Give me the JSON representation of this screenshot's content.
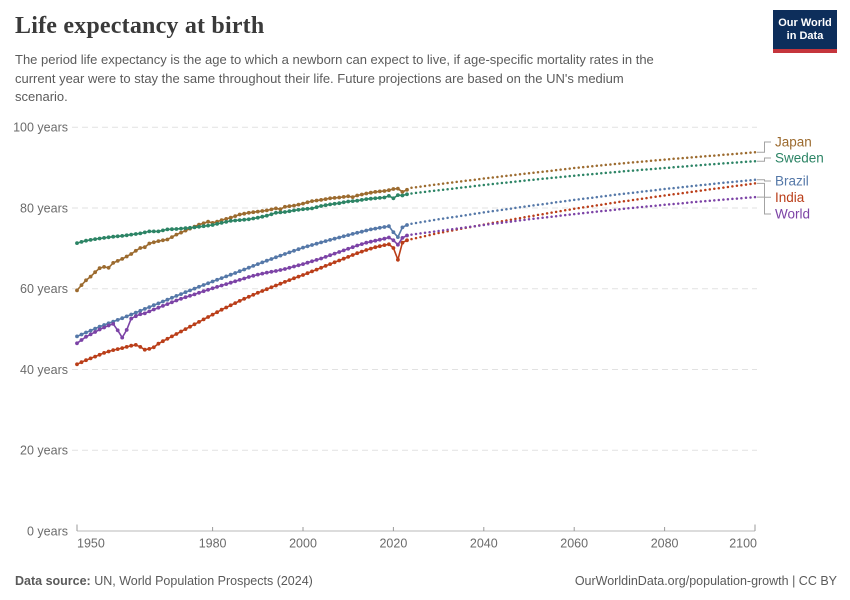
{
  "header": {
    "title": "Life expectancy at birth",
    "subtitle_lines": [
      "The period life expectancy is the age to which a newborn can expect to live, if age-specific mortality rates in the",
      "current year were to stay the same throughout their life. Future projections are based on the UN's medium",
      "scenario."
    ],
    "logo": {
      "line1": "Our World",
      "line2": "in Data"
    }
  },
  "footer": {
    "source_label": "Data source:",
    "source_text": " UN, World Population Prospects (2024)",
    "link_text": "OurWorldinData.org/population-growth",
    "license_text": " | CC BY"
  },
  "colors": {
    "logo_bg": "#0d2e5b",
    "logo_stripe": "#c5353c",
    "grid": "#e2e2e2",
    "axis_line": "#b8b8b8",
    "axis_tick": "#9a9a9a",
    "tick_text": "#6b6b6b",
    "connector": "#a3a3a3"
  },
  "chart_data": {
    "type": "line",
    "title": "Life expectancy at birth",
    "xlabel": "",
    "ylabel": "",
    "xlim": [
      1949,
      2100
    ],
    "ylim": [
      0,
      100
    ],
    "x_ticks": [
      1950,
      1980,
      2000,
      2020,
      2040,
      2060,
      2080,
      2100
    ],
    "y_ticks": [
      0,
      20,
      40,
      60,
      80,
      100
    ],
    "y_tick_suffix": " years",
    "grid": "horizontal-dashed",
    "legend_position": "right-of-lines",
    "projection_start": 2024,
    "projection_style": "dotted",
    "series": [
      {
        "name": "Japan",
        "color": "#9c6b2f",
        "historical": [
          [
            1950,
            59.6
          ],
          [
            1951,
            60.9
          ],
          [
            1952,
            62.1
          ],
          [
            1953,
            63.0
          ],
          [
            1954,
            64.1
          ],
          [
            1955,
            65.1
          ],
          [
            1956,
            65.4
          ],
          [
            1957,
            65.2
          ],
          [
            1958,
            66.4
          ],
          [
            1959,
            66.9
          ],
          [
            1960,
            67.4
          ],
          [
            1961,
            68.0
          ],
          [
            1962,
            68.6
          ],
          [
            1963,
            69.4
          ],
          [
            1964,
            70.1
          ],
          [
            1965,
            70.3
          ],
          [
            1966,
            71.2
          ],
          [
            1967,
            71.5
          ],
          [
            1968,
            71.8
          ],
          [
            1969,
            72.0
          ],
          [
            1970,
            72.2
          ],
          [
            1971,
            72.8
          ],
          [
            1972,
            73.4
          ],
          [
            1973,
            73.9
          ],
          [
            1974,
            74.4
          ],
          [
            1975,
            74.9
          ],
          [
            1976,
            75.4
          ],
          [
            1977,
            75.9
          ],
          [
            1978,
            76.2
          ],
          [
            1979,
            76.6
          ],
          [
            1980,
            76.3
          ],
          [
            1981,
            76.6
          ],
          [
            1982,
            77.0
          ],
          [
            1984,
            77.6
          ],
          [
            1986,
            78.4
          ],
          [
            1988,
            78.8
          ],
          [
            1990,
            79.1
          ],
          [
            1992,
            79.4
          ],
          [
            1994,
            79.9
          ],
          [
            1995,
            79.7
          ],
          [
            1996,
            80.3
          ],
          [
            1998,
            80.6
          ],
          [
            2000,
            81.1
          ],
          [
            2002,
            81.7
          ],
          [
            2004,
            82.0
          ],
          [
            2006,
            82.4
          ],
          [
            2008,
            82.6
          ],
          [
            2010,
            82.9
          ],
          [
            2011,
            82.7
          ],
          [
            2012,
            83.1
          ],
          [
            2014,
            83.6
          ],
          [
            2016,
            84.0
          ],
          [
            2018,
            84.2
          ],
          [
            2019,
            84.4
          ],
          [
            2020,
            84.7
          ],
          [
            2021,
            84.8
          ],
          [
            2022,
            84.0
          ],
          [
            2023,
            84.5
          ]
        ],
        "projection": [
          [
            2024,
            85.0
          ],
          [
            2030,
            85.9
          ],
          [
            2040,
            87.3
          ],
          [
            2050,
            88.6
          ],
          [
            2060,
            89.9
          ],
          [
            2070,
            91.0
          ],
          [
            2080,
            92.0
          ],
          [
            2090,
            92.9
          ],
          [
            2100,
            93.8
          ]
        ]
      },
      {
        "name": "Sweden",
        "color": "#2c8465",
        "historical": [
          [
            1950,
            71.3
          ],
          [
            1952,
            71.9
          ],
          [
            1954,
            72.3
          ],
          [
            1956,
            72.6
          ],
          [
            1958,
            72.9
          ],
          [
            1960,
            73.1
          ],
          [
            1962,
            73.4
          ],
          [
            1964,
            73.7
          ],
          [
            1966,
            74.2
          ],
          [
            1968,
            74.2
          ],
          [
            1970,
            74.7
          ],
          [
            1972,
            74.8
          ],
          [
            1974,
            75.0
          ],
          [
            1976,
            75.2
          ],
          [
            1978,
            75.5
          ],
          [
            1980,
            75.8
          ],
          [
            1982,
            76.3
          ],
          [
            1984,
            76.8
          ],
          [
            1986,
            77.0
          ],
          [
            1988,
            77.2
          ],
          [
            1990,
            77.6
          ],
          [
            1992,
            78.1
          ],
          [
            1994,
            78.8
          ],
          [
            1996,
            79.0
          ],
          [
            1998,
            79.4
          ],
          [
            2000,
            79.7
          ],
          [
            2002,
            79.9
          ],
          [
            2004,
            80.5
          ],
          [
            2006,
            80.9
          ],
          [
            2008,
            81.2
          ],
          [
            2010,
            81.6
          ],
          [
            2012,
            81.8
          ],
          [
            2014,
            82.2
          ],
          [
            2016,
            82.4
          ],
          [
            2018,
            82.6
          ],
          [
            2019,
            83.0
          ],
          [
            2020,
            82.4
          ],
          [
            2021,
            83.2
          ],
          [
            2022,
            83.1
          ],
          [
            2023,
            83.4
          ]
        ],
        "projection": [
          [
            2024,
            83.6
          ],
          [
            2030,
            84.4
          ],
          [
            2040,
            85.7
          ],
          [
            2050,
            86.9
          ],
          [
            2060,
            88.0
          ],
          [
            2070,
            89.0
          ],
          [
            2080,
            89.9
          ],
          [
            2090,
            90.8
          ],
          [
            2100,
            91.6
          ]
        ]
      },
      {
        "name": "Brazil",
        "color": "#5578a8",
        "historical": [
          [
            1950,
            48.2
          ],
          [
            1955,
            50.6
          ],
          [
            1960,
            52.7
          ],
          [
            1965,
            55.0
          ],
          [
            1970,
            57.3
          ],
          [
            1975,
            59.6
          ],
          [
            1980,
            61.8
          ],
          [
            1985,
            63.9
          ],
          [
            1990,
            66.1
          ],
          [
            1995,
            68.2
          ],
          [
            2000,
            70.2
          ],
          [
            2005,
            71.8
          ],
          [
            2010,
            73.3
          ],
          [
            2015,
            74.7
          ],
          [
            2019,
            75.5
          ],
          [
            2020,
            74.0
          ],
          [
            2021,
            72.8
          ],
          [
            2022,
            75.2
          ],
          [
            2023,
            75.8
          ]
        ],
        "projection": [
          [
            2024,
            76.1
          ],
          [
            2030,
            77.2
          ],
          [
            2040,
            78.9
          ],
          [
            2050,
            80.5
          ],
          [
            2060,
            82.0
          ],
          [
            2070,
            83.4
          ],
          [
            2080,
            84.7
          ],
          [
            2090,
            85.9
          ],
          [
            2100,
            87.0
          ]
        ]
      },
      {
        "name": "India",
        "color": "#ba3e19",
        "historical": [
          [
            1950,
            41.3
          ],
          [
            1952,
            42.3
          ],
          [
            1954,
            43.2
          ],
          [
            1956,
            44.1
          ],
          [
            1958,
            44.8
          ],
          [
            1960,
            45.3
          ],
          [
            1962,
            45.9
          ],
          [
            1963,
            46.1
          ],
          [
            1964,
            45.6
          ],
          [
            1965,
            44.9
          ],
          [
            1966,
            45.1
          ],
          [
            1967,
            45.5
          ],
          [
            1968,
            46.4
          ],
          [
            1970,
            47.6
          ],
          [
            1972,
            48.8
          ],
          [
            1974,
            50.0
          ],
          [
            1976,
            51.2
          ],
          [
            1978,
            52.4
          ],
          [
            1980,
            53.6
          ],
          [
            1982,
            54.8
          ],
          [
            1984,
            55.9
          ],
          [
            1986,
            57.0
          ],
          [
            1988,
            58.0
          ],
          [
            1990,
            59.0
          ],
          [
            1992,
            59.9
          ],
          [
            1994,
            60.8
          ],
          [
            1996,
            61.7
          ],
          [
            1998,
            62.6
          ],
          [
            2000,
            63.4
          ],
          [
            2002,
            64.3
          ],
          [
            2004,
            65.2
          ],
          [
            2006,
            66.1
          ],
          [
            2008,
            67.0
          ],
          [
            2010,
            67.9
          ],
          [
            2012,
            68.8
          ],
          [
            2014,
            69.6
          ],
          [
            2016,
            70.3
          ],
          [
            2018,
            70.8
          ],
          [
            2019,
            71.0
          ],
          [
            2020,
            70.1
          ],
          [
            2021,
            67.2
          ],
          [
            2022,
            71.4
          ],
          [
            2023,
            72.0
          ]
        ],
        "projection": [
          [
            2024,
            72.3
          ],
          [
            2030,
            73.8
          ],
          [
            2040,
            75.9
          ],
          [
            2050,
            77.9
          ],
          [
            2060,
            79.8
          ],
          [
            2070,
            81.5
          ],
          [
            2080,
            83.1
          ],
          [
            2090,
            84.6
          ],
          [
            2100,
            86.1
          ]
        ]
      },
      {
        "name": "World",
        "color": "#7c43a6",
        "historical": [
          [
            1950,
            46.5
          ],
          [
            1951,
            47.3
          ],
          [
            1952,
            48.1
          ],
          [
            1953,
            48.7
          ],
          [
            1954,
            49.3
          ],
          [
            1955,
            49.9
          ],
          [
            1956,
            50.4
          ],
          [
            1957,
            50.9
          ],
          [
            1958,
            51.3
          ],
          [
            1959,
            49.7
          ],
          [
            1960,
            47.9
          ],
          [
            1961,
            49.8
          ],
          [
            1962,
            52.6
          ],
          [
            1963,
            53.2
          ],
          [
            1964,
            53.7
          ],
          [
            1965,
            53.9
          ],
          [
            1966,
            54.4
          ],
          [
            1968,
            55.3
          ],
          [
            1970,
            56.2
          ],
          [
            1972,
            57.1
          ],
          [
            1974,
            57.9
          ],
          [
            1976,
            58.6
          ],
          [
            1978,
            59.4
          ],
          [
            1980,
            60.1
          ],
          [
            1982,
            60.8
          ],
          [
            1984,
            61.5
          ],
          [
            1986,
            62.2
          ],
          [
            1988,
            62.9
          ],
          [
            1990,
            63.5
          ],
          [
            1992,
            64.0
          ],
          [
            1994,
            64.4
          ],
          [
            1996,
            64.9
          ],
          [
            1998,
            65.5
          ],
          [
            2000,
            66.1
          ],
          [
            2002,
            66.8
          ],
          [
            2004,
            67.5
          ],
          [
            2006,
            68.3
          ],
          [
            2008,
            69.1
          ],
          [
            2010,
            69.9
          ],
          [
            2012,
            70.7
          ],
          [
            2014,
            71.4
          ],
          [
            2016,
            71.9
          ],
          [
            2018,
            72.4
          ],
          [
            2019,
            72.7
          ],
          [
            2020,
            72.0
          ],
          [
            2021,
            70.9
          ],
          [
            2022,
            72.6
          ],
          [
            2023,
            73.2
          ]
        ],
        "projection": [
          [
            2024,
            73.4
          ],
          [
            2030,
            74.3
          ],
          [
            2040,
            75.8
          ],
          [
            2050,
            77.2
          ],
          [
            2060,
            78.5
          ],
          [
            2070,
            79.7
          ],
          [
            2080,
            80.8
          ],
          [
            2090,
            81.8
          ],
          [
            2100,
            82.7
          ]
        ]
      }
    ]
  }
}
